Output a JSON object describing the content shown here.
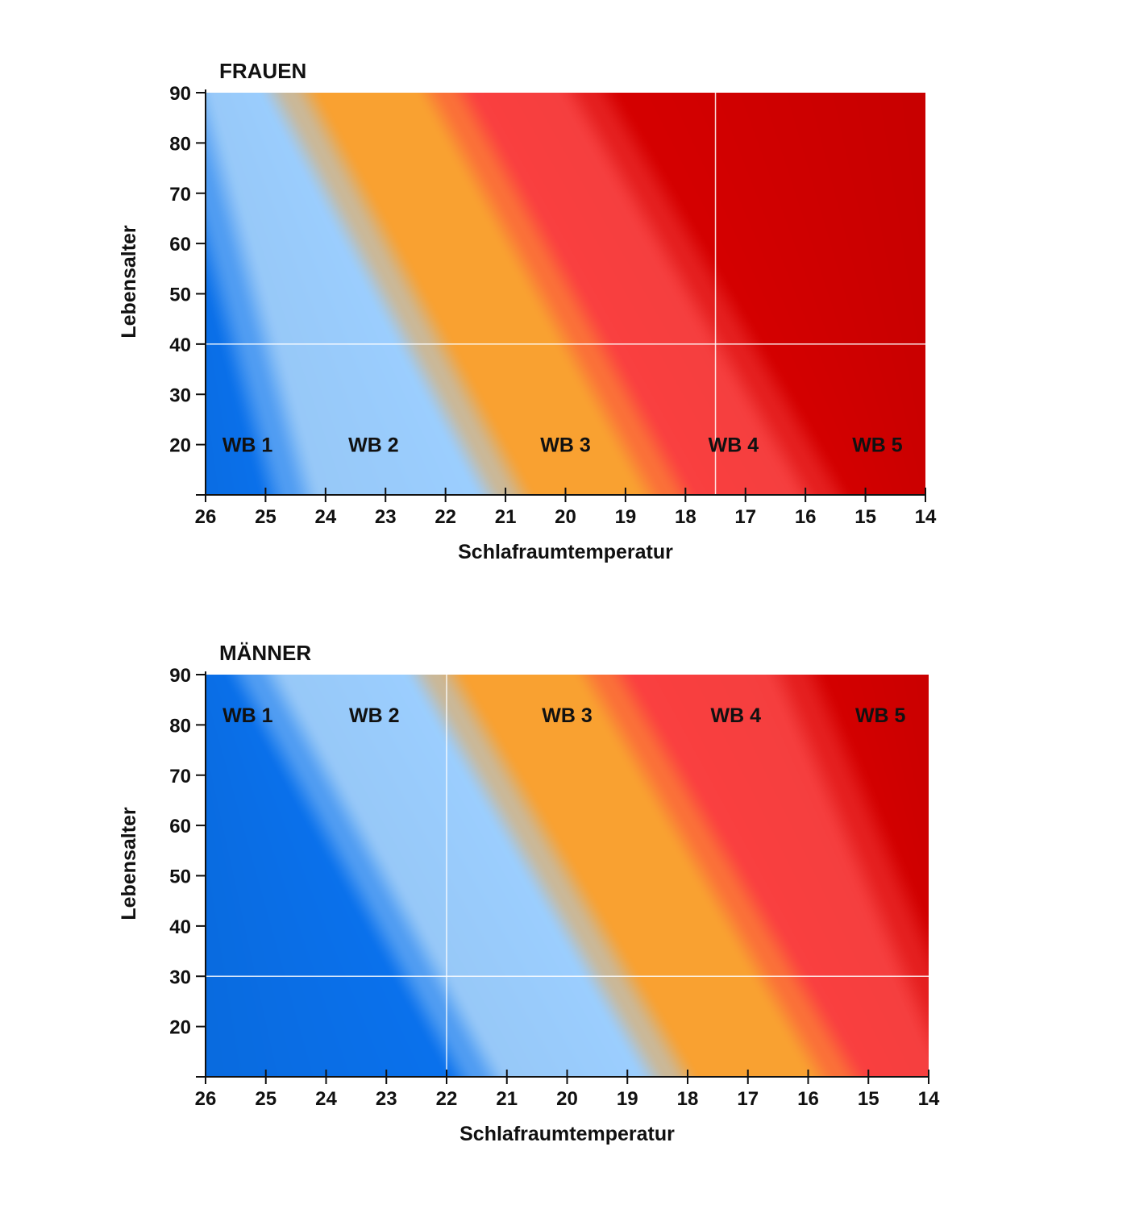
{
  "colors": {
    "wb1": "#0a72ee",
    "wb2": "#99cbfb",
    "wb3": "#f9a131",
    "wb4": "#fb4040",
    "wb5": "#d60000",
    "axis": "#111111",
    "refline": "#ffffff"
  },
  "chart_data": [
    {
      "type": "heatmap",
      "title": "FRAUEN",
      "xlabel": "Schlafraumtemperatur",
      "ylabel": "Lebensalter",
      "xlim": [
        26,
        14
      ],
      "ylim": [
        10,
        90
      ],
      "x_ticks": [
        26,
        25,
        24,
        23,
        22,
        21,
        20,
        19,
        18,
        17,
        16,
        15,
        14
      ],
      "y_ticks": [
        90,
        80,
        70,
        60,
        50,
        40,
        30,
        20
      ],
      "zone_labels": [
        {
          "text": "WB 1",
          "x": 25.3,
          "age": 20
        },
        {
          "text": "WB 2",
          "x": 23.2,
          "age": 20
        },
        {
          "text": "WB 3",
          "x": 20.0,
          "age": 20
        },
        {
          "text": "WB 4",
          "x": 17.2,
          "age": 20
        },
        {
          "text": "WB 5",
          "x": 14.8,
          "age": 20
        }
      ],
      "zone_boundaries": [
        {
          "between": [
            "WB 1",
            "WB 2"
          ],
          "at_age_10": 24.6,
          "at_age_90": 26.4
        },
        {
          "between": [
            "WB 2",
            "WB 3"
          ],
          "at_age_10": 21.0,
          "at_age_90": 24.6
        },
        {
          "between": [
            "WB 3",
            "WB 4"
          ],
          "at_age_10": 18.3,
          "at_age_90": 22.0
        },
        {
          "between": [
            "WB 4",
            "WB 5"
          ],
          "at_age_10": 15.7,
          "at_age_90": 19.6
        }
      ],
      "reference_lines": {
        "temperature": 17.5,
        "age": 40
      }
    },
    {
      "type": "heatmap",
      "title": "MÄNNER",
      "xlabel": "Schlafraumtemperatur",
      "ylabel": "Lebensalter",
      "xlim": [
        26,
        14
      ],
      "ylim": [
        10,
        90
      ],
      "x_ticks": [
        26,
        25,
        24,
        23,
        22,
        21,
        20,
        19,
        18,
        17,
        16,
        15,
        14
      ],
      "y_ticks": [
        90,
        80,
        70,
        60,
        50,
        40,
        30,
        20
      ],
      "zone_labels": [
        {
          "text": "WB 1",
          "x": 25.3,
          "age": 82
        },
        {
          "text": "WB 2",
          "x": 23.2,
          "age": 82
        },
        {
          "text": "WB 3",
          "x": 20.0,
          "age": 82
        },
        {
          "text": "WB 4",
          "x": 17.2,
          "age": 82
        },
        {
          "text": "WB 5",
          "x": 14.8,
          "age": 82
        }
      ],
      "zone_boundaries": [
        {
          "between": [
            "WB 1",
            "WB 2"
          ],
          "at_age_10": 21.5,
          "at_age_90": 25.2
        },
        {
          "between": [
            "WB 2",
            "WB 3"
          ],
          "at_age_10": 18.3,
          "at_age_90": 22.2
        },
        {
          "between": [
            "WB 3",
            "WB 4"
          ],
          "at_age_10": 15.5,
          "at_age_90": 19.4
        },
        {
          "between": [
            "WB 4",
            "WB 5"
          ],
          "at_age_10": 13.4,
          "at_age_90": 16.2
        }
      ],
      "reference_lines": {
        "temperature": 22,
        "age": 30
      }
    }
  ]
}
